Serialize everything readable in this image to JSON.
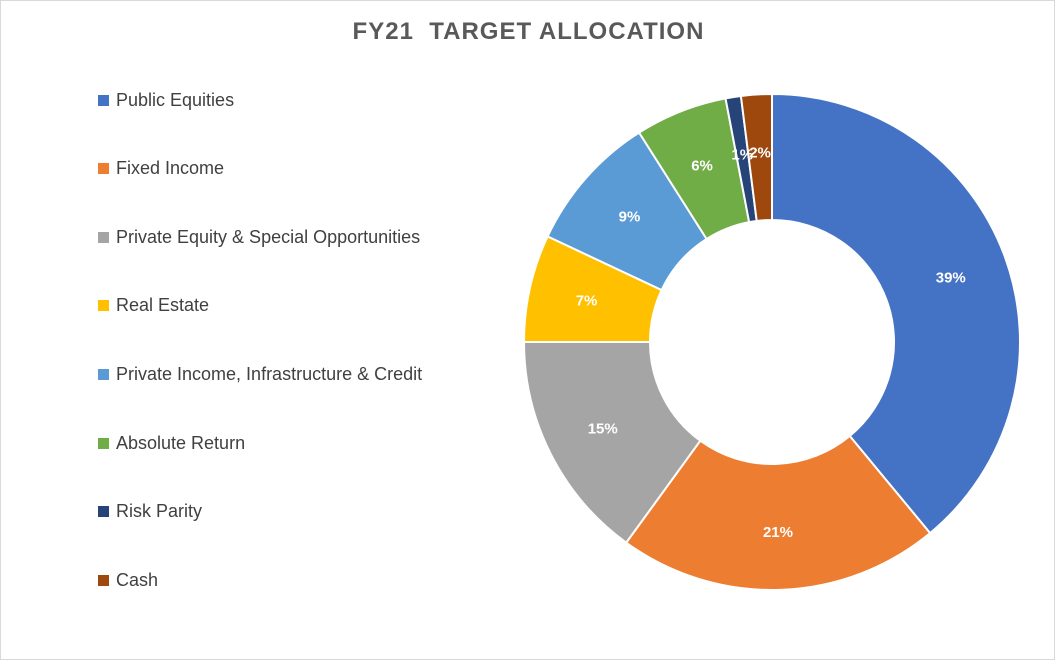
{
  "chart_data": {
    "type": "pie",
    "title": "FY21  TARGET ALLOCATION",
    "categories": [
      "Public Equities",
      "Fixed Income",
      "Private Equity & Special Opportunities",
      "Real Estate",
      "Private Income, Infrastructure & Credit",
      "Absolute Return",
      "Risk Parity",
      "Cash"
    ],
    "values": [
      39,
      21,
      15,
      7,
      9,
      6,
      1,
      2
    ],
    "labels": [
      "39%",
      "21%",
      "15%",
      "7%",
      "9%",
      "6%",
      "1%",
      "2%"
    ],
    "colors": [
      "#4472c4",
      "#ed7d31",
      "#a5a5a5",
      "#ffc000",
      "#5b9bd5",
      "#70ad47",
      "#264478",
      "#9e480e"
    ],
    "donut": true,
    "legend_position": "left"
  }
}
